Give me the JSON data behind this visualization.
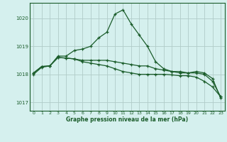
{
  "title": "Graphe pression niveau de la mer (hPa)",
  "bg_color": "#d5f0ee",
  "grid_color": "#b0ccc8",
  "line_color": "#1a5c2a",
  "ylim": [
    1016.7,
    1020.55
  ],
  "yticks": [
    1017,
    1018,
    1019,
    1020
  ],
  "xlim": [
    -0.5,
    23.5
  ],
  "xticks": [
    0,
    1,
    2,
    3,
    4,
    5,
    6,
    7,
    8,
    9,
    10,
    11,
    12,
    13,
    14,
    15,
    16,
    17,
    18,
    19,
    20,
    21,
    22,
    23
  ],
  "line1": [
    1018.0,
    1018.25,
    1018.3,
    1018.65,
    1018.65,
    1018.85,
    1018.9,
    1019.0,
    1019.3,
    1019.5,
    1020.15,
    1020.3,
    1019.8,
    1019.4,
    1019.0,
    1018.45,
    1018.2,
    1018.1,
    1018.05,
    1018.05,
    1018.1,
    1018.05,
    1017.85,
    1017.15
  ],
  "line2": [
    1018.05,
    1018.28,
    1018.3,
    1018.6,
    1018.58,
    1018.55,
    1018.45,
    1018.4,
    1018.35,
    1018.3,
    1018.2,
    1018.1,
    1018.05,
    1018.0,
    1018.0,
    1018.0,
    1018.0,
    1017.98,
    1017.95,
    1017.95,
    1017.9,
    1017.75,
    1017.55,
    1017.2
  ],
  "line3": [
    1018.05,
    1018.28,
    1018.3,
    1018.6,
    1018.58,
    1018.55,
    1018.5,
    1018.5,
    1018.5,
    1018.5,
    1018.45,
    1018.4,
    1018.35,
    1018.3,
    1018.3,
    1018.2,
    1018.15,
    1018.1,
    1018.1,
    1018.05,
    1018.05,
    1018.0,
    1017.75,
    1017.2
  ]
}
